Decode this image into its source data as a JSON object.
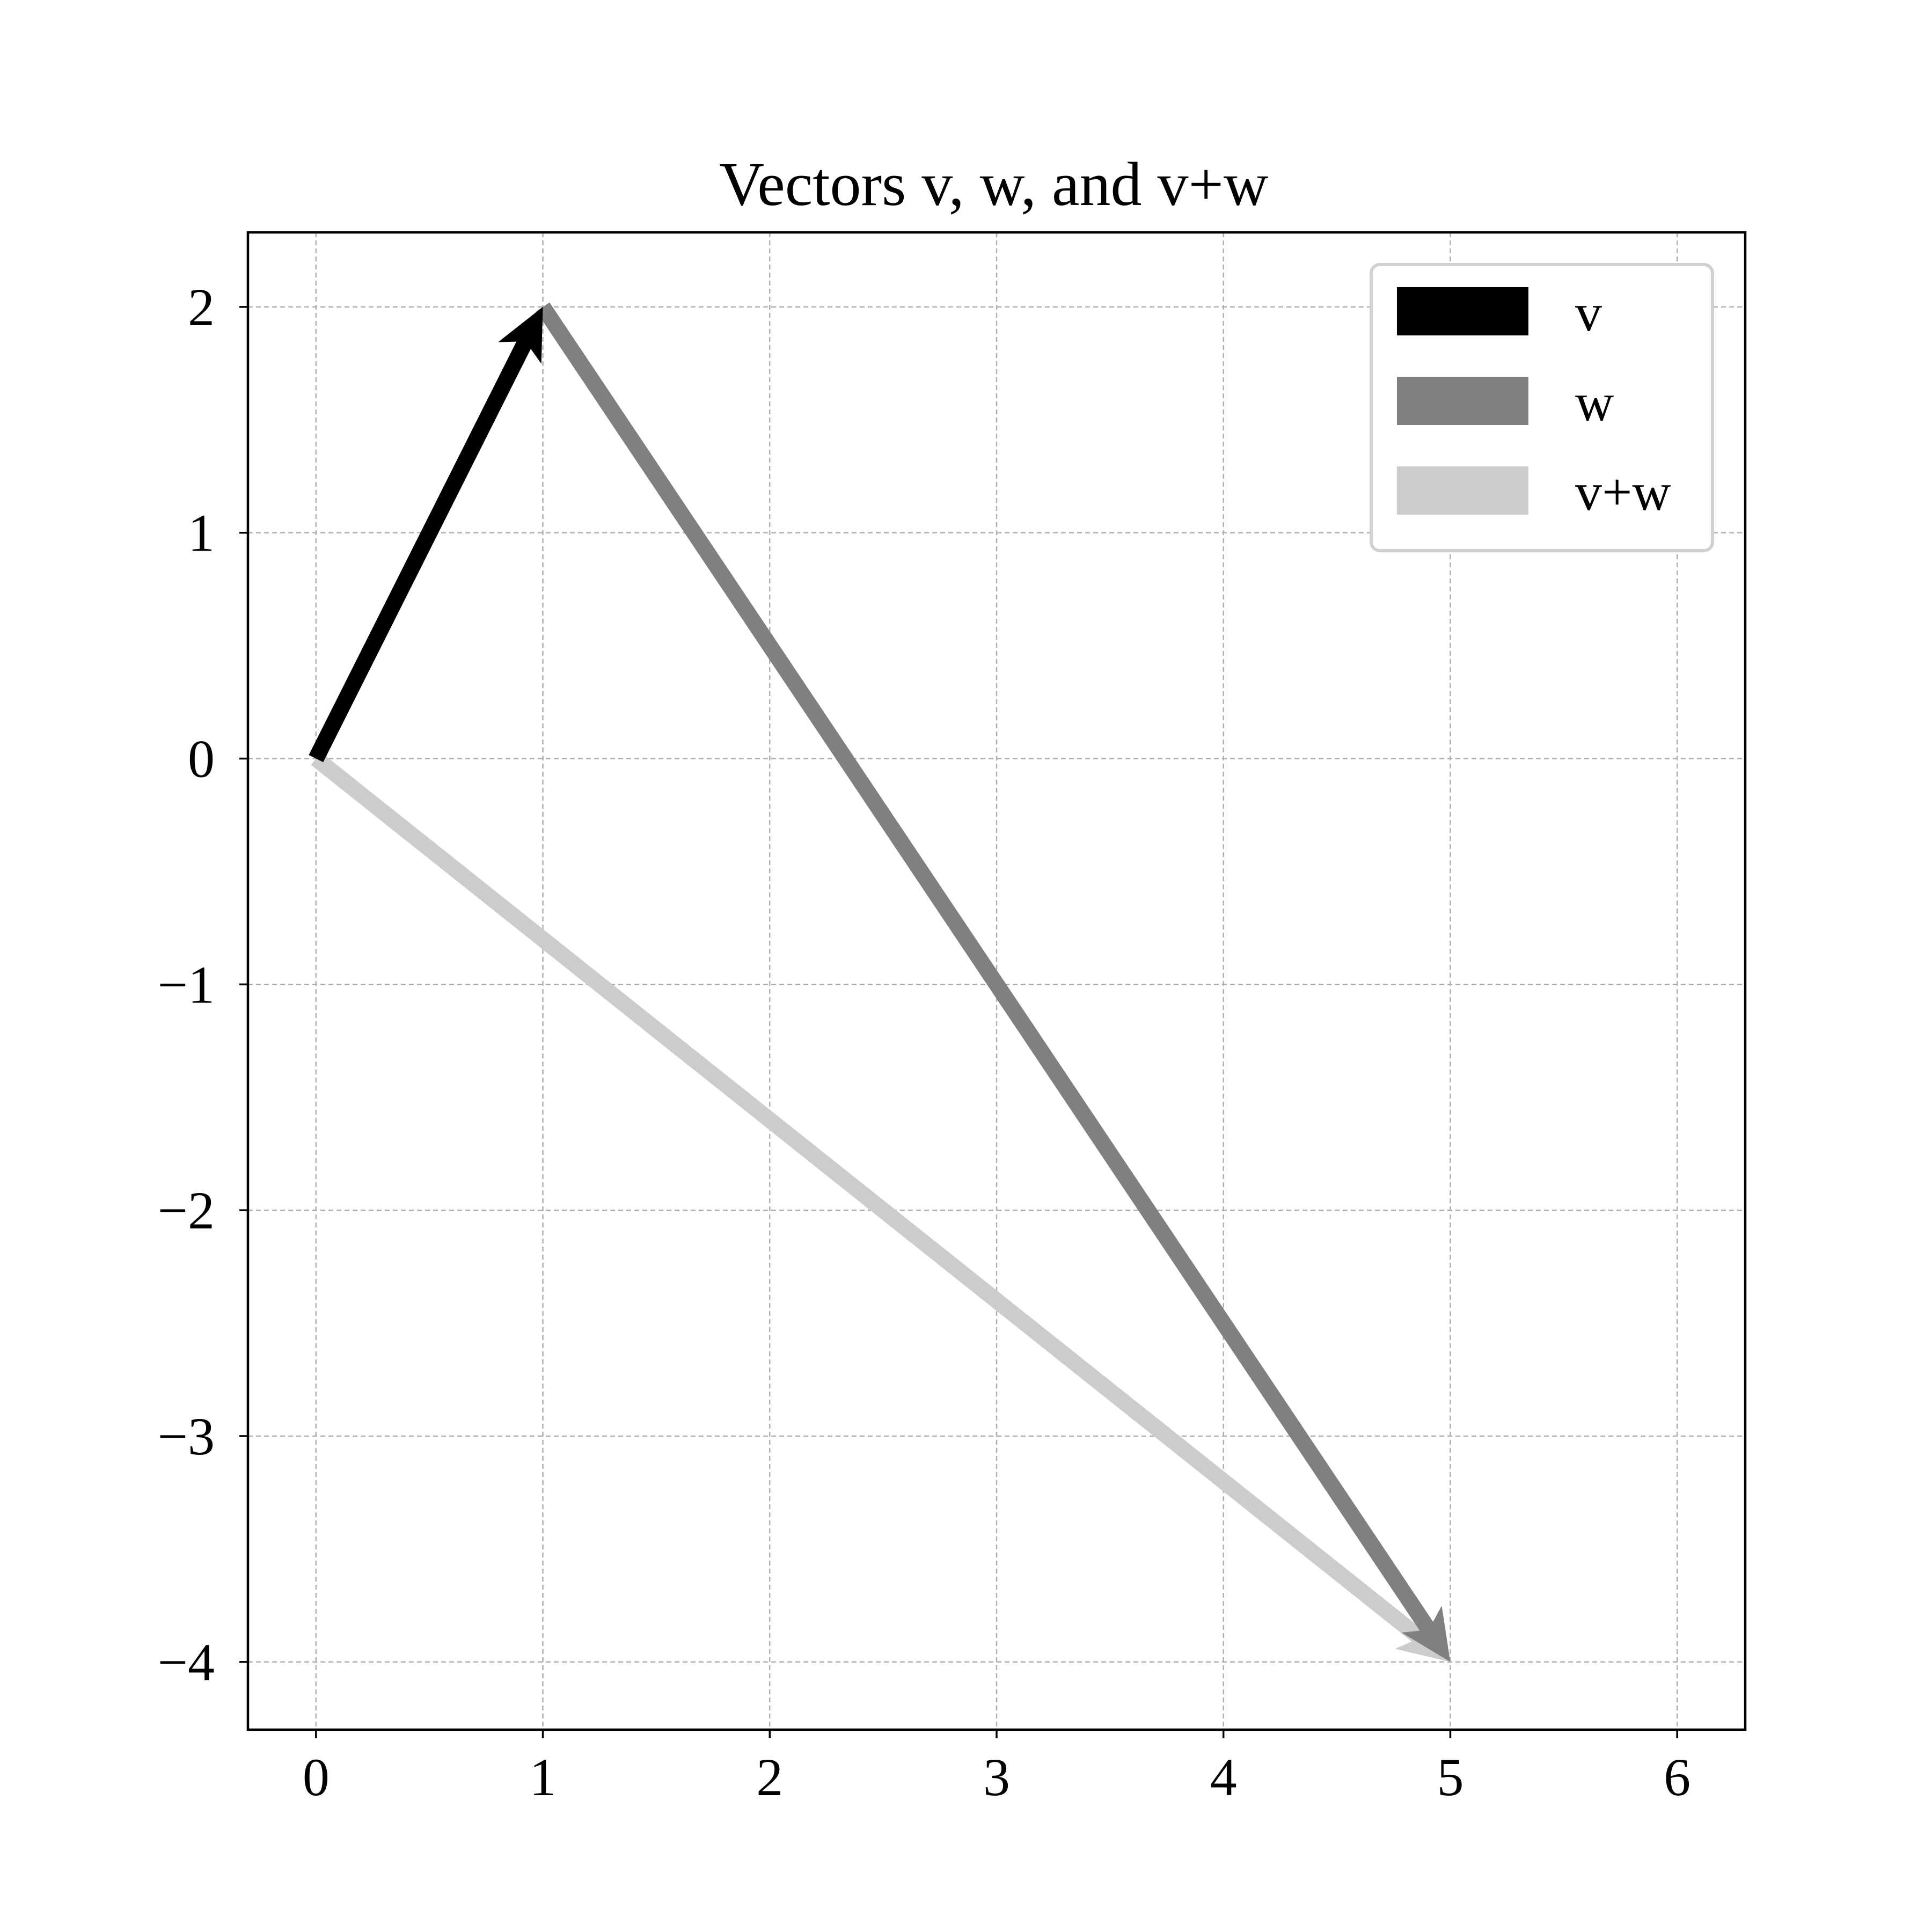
{
  "chart_data": {
    "type": "quiver",
    "title": "Vectors v, w, and v+w",
    "xlabel": "",
    "ylabel": "",
    "xlim": [
      -0.3,
      6.3
    ],
    "ylim": [
      -4.3,
      2.33
    ],
    "xticks": [
      0,
      1,
      2,
      3,
      4,
      5,
      6
    ],
    "yticks": [
      2,
      1,
      0,
      -1,
      -2,
      -3,
      -4
    ],
    "xtick_labels": [
      "0",
      "1",
      "2",
      "3",
      "4",
      "5",
      "6"
    ],
    "ytick_labels": [
      "2",
      "1",
      "0",
      "−1",
      "−2",
      "−3",
      "−4"
    ],
    "grid": true,
    "legend_position": "top-right",
    "series": [
      {
        "name": "v",
        "x0": 0,
        "y0": 0,
        "dx": 1,
        "dy": 2,
        "color": "#000000"
      },
      {
        "name": "w",
        "x0": 1,
        "y0": 2,
        "dx": 4,
        "dy": -6,
        "color": "#808080"
      },
      {
        "name": "v+w",
        "x0": 0,
        "y0": 0,
        "dx": 5,
        "dy": -4,
        "color": "#cccccc"
      }
    ]
  }
}
